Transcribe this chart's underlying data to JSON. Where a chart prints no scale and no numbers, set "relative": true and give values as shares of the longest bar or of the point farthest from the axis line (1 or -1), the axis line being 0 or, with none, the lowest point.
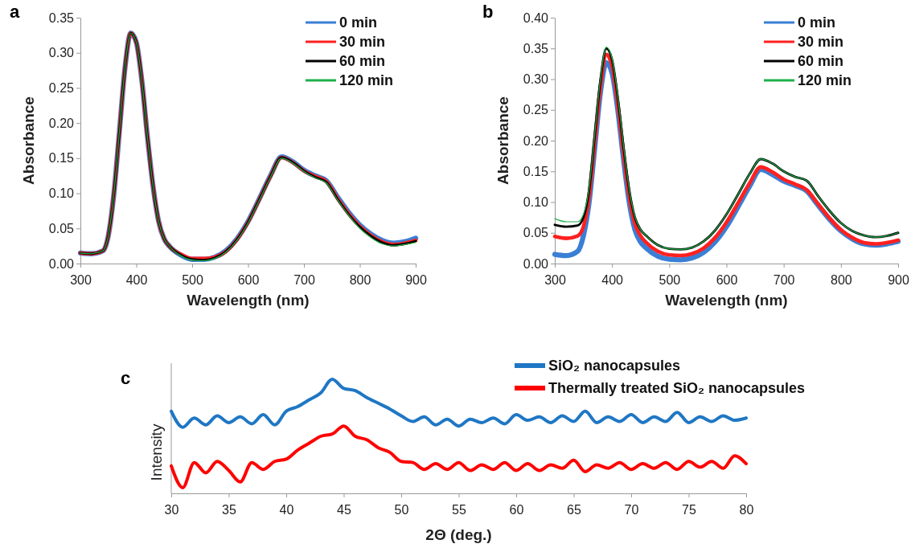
{
  "chart_data": [
    {
      "type": "line",
      "title": "a",
      "xlabel": "Wavelength (nm)",
      "ylabel": "Absorbance",
      "legend": "top right",
      "xlim": [
        300,
        900
      ],
      "xticks": [
        300,
        400,
        500,
        600,
        700,
        800,
        900
      ],
      "ylim": [
        0,
        0.35
      ],
      "yticks": [
        {
          "value": 0,
          "label": "0.00"
        },
        {
          "value": 0.05,
          "label": "0.05"
        },
        {
          "value": 0.1,
          "label": "0.10"
        },
        {
          "value": 0.15,
          "label": "0.15"
        },
        {
          "value": 0.2,
          "label": "0.20"
        },
        {
          "value": 0.25,
          "label": "0.25"
        },
        {
          "value": 0.3,
          "label": "0.30"
        },
        {
          "value": 0.35,
          "label": "0.35"
        }
      ],
      "x": [
        300,
        320,
        340,
        350,
        360,
        370,
        380,
        390,
        400,
        410,
        420,
        430,
        440,
        450,
        460,
        480,
        500,
        520,
        540,
        560,
        580,
        600,
        620,
        640,
        660,
        680,
        700,
        720,
        740,
        760,
        780,
        800,
        820,
        840,
        860,
        880,
        900
      ],
      "series": [
        {
          "name": "0 min",
          "color": "#3a7fd5",
          "values": [
            0.015,
            0.014,
            0.018,
            0.04,
            0.1,
            0.19,
            0.28,
            0.328,
            0.315,
            0.26,
            0.18,
            0.11,
            0.06,
            0.035,
            0.024,
            0.012,
            0.006,
            0.006,
            0.009,
            0.018,
            0.035,
            0.06,
            0.092,
            0.125,
            0.152,
            0.145,
            0.133,
            0.125,
            0.118,
            0.095,
            0.073,
            0.055,
            0.042,
            0.033,
            0.029,
            0.031,
            0.036
          ]
        },
        {
          "name": "30 min",
          "color": "#ff2020",
          "values": [
            0.015,
            0.014,
            0.018,
            0.04,
            0.1,
            0.19,
            0.28,
            0.328,
            0.315,
            0.26,
            0.18,
            0.11,
            0.06,
            0.035,
            0.024,
            0.013,
            0.007,
            0.007,
            0.009,
            0.017,
            0.034,
            0.059,
            0.091,
            0.124,
            0.151,
            0.144,
            0.132,
            0.124,
            0.117,
            0.093,
            0.071,
            0.053,
            0.04,
            0.031,
            0.027,
            0.029,
            0.033
          ]
        },
        {
          "name": "60 min",
          "color": "#000000",
          "values": [
            0.015,
            0.014,
            0.018,
            0.04,
            0.1,
            0.19,
            0.28,
            0.328,
            0.315,
            0.26,
            0.18,
            0.11,
            0.06,
            0.035,
            0.024,
            0.012,
            0.006,
            0.005,
            0.008,
            0.017,
            0.034,
            0.059,
            0.091,
            0.124,
            0.151,
            0.144,
            0.132,
            0.123,
            0.116,
            0.092,
            0.07,
            0.052,
            0.039,
            0.03,
            0.026,
            0.028,
            0.032
          ]
        },
        {
          "name": "120 min",
          "color": "#1fb04a",
          "values": [
            0.015,
            0.014,
            0.018,
            0.04,
            0.1,
            0.19,
            0.28,
            0.328,
            0.315,
            0.26,
            0.18,
            0.11,
            0.06,
            0.035,
            0.024,
            0.011,
            0.005,
            0.004,
            0.007,
            0.016,
            0.033,
            0.058,
            0.09,
            0.123,
            0.15,
            0.143,
            0.131,
            0.122,
            0.115,
            0.091,
            0.069,
            0.05,
            0.037,
            0.028,
            0.025,
            0.027,
            0.03
          ]
        }
      ]
    },
    {
      "type": "line",
      "title": "b",
      "xlabel": "Wavelength (nm)",
      "ylabel": "Absorbance",
      "legend": "top right",
      "xlim": [
        300,
        900
      ],
      "xticks": [
        300,
        400,
        500,
        600,
        700,
        800,
        900
      ],
      "ylim": [
        0,
        0.4
      ],
      "yticks": [
        {
          "value": 0,
          "label": "0.00"
        },
        {
          "value": 0.05,
          "label": "0.05"
        },
        {
          "value": 0.1,
          "label": "0.10"
        },
        {
          "value": 0.15,
          "label": "0.15"
        },
        {
          "value": 0.2,
          "label": "0.20"
        },
        {
          "value": 0.25,
          "label": "0.25"
        },
        {
          "value": 0.3,
          "label": "0.30"
        },
        {
          "value": 0.35,
          "label": "0.35"
        },
        {
          "value": 0.4,
          "label": "0.40"
        }
      ],
      "x": [
        300,
        320,
        340,
        350,
        360,
        370,
        380,
        390,
        400,
        410,
        420,
        430,
        440,
        450,
        460,
        480,
        500,
        520,
        540,
        560,
        580,
        600,
        620,
        640,
        660,
        680,
        700,
        720,
        740,
        760,
        780,
        800,
        820,
        840,
        860,
        880,
        900
      ],
      "series": [
        {
          "name": "0 min",
          "color": "#3a7fd5",
          "values": [
            0.015,
            0.013,
            0.02,
            0.045,
            0.1,
            0.19,
            0.28,
            0.327,
            0.31,
            0.25,
            0.17,
            0.1,
            0.055,
            0.035,
            0.025,
            0.012,
            0.007,
            0.006,
            0.009,
            0.018,
            0.035,
            0.06,
            0.092,
            0.125,
            0.153,
            0.145,
            0.134,
            0.127,
            0.118,
            0.095,
            0.072,
            0.053,
            0.04,
            0.032,
            0.03,
            0.032,
            0.036
          ]
        },
        {
          "name": "30 min",
          "color": "#ff2020",
          "values": [
            0.044,
            0.041,
            0.045,
            0.06,
            0.11,
            0.2,
            0.29,
            0.34,
            0.322,
            0.26,
            0.18,
            0.11,
            0.065,
            0.045,
            0.034,
            0.02,
            0.014,
            0.013,
            0.016,
            0.025,
            0.042,
            0.067,
            0.098,
            0.13,
            0.157,
            0.149,
            0.137,
            0.129,
            0.12,
            0.097,
            0.074,
            0.055,
            0.042,
            0.034,
            0.032,
            0.034,
            0.038
          ]
        },
        {
          "name": "60 min",
          "color": "#000000",
          "values": [
            0.063,
            0.06,
            0.062,
            0.075,
            0.12,
            0.21,
            0.3,
            0.35,
            0.332,
            0.27,
            0.19,
            0.12,
            0.075,
            0.055,
            0.045,
            0.03,
            0.024,
            0.023,
            0.026,
            0.036,
            0.054,
            0.08,
            0.112,
            0.145,
            0.17,
            0.163,
            0.15,
            0.141,
            0.135,
            0.11,
            0.086,
            0.066,
            0.053,
            0.046,
            0.043,
            0.045,
            0.05
          ]
        },
        {
          "name": "120 min",
          "color": "#1fb04a",
          "values": [
            0.073,
            0.068,
            0.068,
            0.08,
            0.123,
            0.212,
            0.302,
            0.352,
            0.334,
            0.272,
            0.192,
            0.121,
            0.076,
            0.055,
            0.045,
            0.03,
            0.024,
            0.023,
            0.026,
            0.036,
            0.054,
            0.08,
            0.112,
            0.145,
            0.17,
            0.163,
            0.15,
            0.141,
            0.135,
            0.11,
            0.086,
            0.066,
            0.053,
            0.046,
            0.043,
            0.045,
            0.05
          ]
        }
      ]
    },
    {
      "type": "line",
      "title": "c",
      "xlabel": "2Θ (deg.)",
      "ylabel": "Intensity",
      "relative": true,
      "legend": "top right",
      "xlim": [
        30,
        80
      ],
      "xticks": [
        30,
        35,
        40,
        45,
        50,
        55,
        60,
        65,
        70,
        75,
        80
      ],
      "x": [
        30,
        31,
        32,
        33,
        34,
        35,
        36,
        37,
        38,
        39,
        40,
        41,
        42,
        43,
        44,
        45,
        46,
        47,
        48,
        49,
        50,
        51,
        52,
        53,
        54,
        55,
        56,
        57,
        58,
        59,
        60,
        61,
        62,
        63,
        64,
        65,
        66,
        67,
        68,
        69,
        70,
        71,
        72,
        73,
        74,
        75,
        76,
        77,
        78,
        79,
        80
      ],
      "series": [
        {
          "name": "SiO₂ nanocapsules",
          "color": "#1f77c4",
          "values": [
            0.72,
            0.58,
            0.66,
            0.6,
            0.68,
            0.62,
            0.67,
            0.61,
            0.69,
            0.6,
            0.72,
            0.76,
            0.82,
            0.88,
            1.0,
            0.92,
            0.9,
            0.84,
            0.79,
            0.74,
            0.68,
            0.63,
            0.67,
            0.6,
            0.65,
            0.59,
            0.65,
            0.62,
            0.66,
            0.61,
            0.69,
            0.64,
            0.67,
            0.62,
            0.68,
            0.63,
            0.72,
            0.62,
            0.67,
            0.63,
            0.69,
            0.62,
            0.67,
            0.63,
            0.71,
            0.62,
            0.67,
            0.63,
            0.68,
            0.64,
            0.66
          ]
        },
        {
          "name": "Thermally treated SiO₂ nanocapsules",
          "color": "#ff0000",
          "values": [
            0.24,
            0.05,
            0.27,
            0.18,
            0.28,
            0.2,
            0.1,
            0.27,
            0.21,
            0.28,
            0.3,
            0.38,
            0.44,
            0.5,
            0.52,
            0.59,
            0.5,
            0.47,
            0.4,
            0.36,
            0.28,
            0.27,
            0.21,
            0.26,
            0.21,
            0.27,
            0.2,
            0.25,
            0.21,
            0.27,
            0.2,
            0.26,
            0.2,
            0.25,
            0.22,
            0.29,
            0.19,
            0.25,
            0.22,
            0.27,
            0.21,
            0.26,
            0.22,
            0.27,
            0.21,
            0.28,
            0.23,
            0.28,
            0.22,
            0.33,
            0.26
          ]
        }
      ]
    }
  ]
}
